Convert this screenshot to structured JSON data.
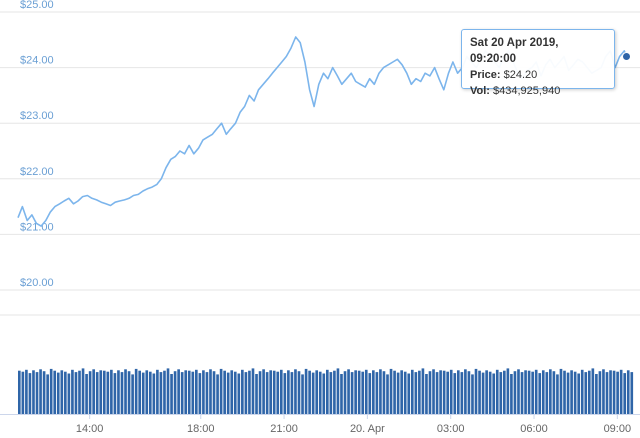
{
  "chart_data": {
    "type": "line",
    "ylim": [
      20,
      25
    ],
    "yticks": [
      "$20.00",
      "$21.00",
      "$22.00",
      "$23.00",
      "$24.00",
      "$25.00"
    ],
    "xtick_labels": [
      "14:00",
      "18:00",
      "21:00",
      "20. Apr",
      "03:00",
      "06:00",
      "09:00"
    ],
    "xtick_hours": [
      14,
      18,
      21,
      24,
      27,
      30,
      33
    ],
    "x_range_hours": [
      11.42,
      33.6
    ],
    "grid": true,
    "series": [
      {
        "x_hours": [
          11.42,
          11.58,
          11.75,
          11.92,
          12.08,
          12.25,
          12.42,
          12.58,
          12.75,
          12.92,
          13.08,
          13.25,
          13.42,
          13.58,
          13.75,
          13.92,
          14.08,
          14.25,
          14.42,
          14.58,
          14.75,
          14.92,
          15.08,
          15.25,
          15.42,
          15.58,
          15.75,
          15.92,
          16.08,
          16.25,
          16.42,
          16.58,
          16.75,
          16.92,
          17.08,
          17.25,
          17.42,
          17.58,
          17.75,
          17.92,
          18.08,
          18.25,
          18.42,
          18.58,
          18.75,
          18.92,
          19.08,
          19.25,
          19.42,
          19.58,
          19.75,
          19.92,
          20.08,
          20.25,
          20.42,
          20.58,
          20.75,
          20.92,
          21.08,
          21.25,
          21.42,
          21.58,
          21.75,
          21.92,
          22.08,
          22.25,
          22.42,
          22.58,
          22.75,
          22.92,
          23.08,
          23.25,
          23.42,
          23.58,
          23.75,
          23.92,
          24.08,
          24.25,
          24.42,
          24.58,
          24.75,
          24.92,
          25.08,
          25.25,
          25.42,
          25.58,
          25.75,
          25.92,
          26.08,
          26.25,
          26.42,
          26.58,
          26.75,
          26.92,
          27.08,
          27.25,
          27.42,
          27.58,
          27.75,
          27.92,
          28.08,
          28.25,
          28.42,
          28.58,
          28.75,
          28.92,
          29.08,
          29.25,
          29.42,
          29.58,
          29.75,
          29.92,
          30.08,
          30.25,
          30.42,
          30.58,
          30.75,
          30.92,
          31.08,
          31.25,
          31.42,
          31.58,
          31.75,
          31.92,
          32.08,
          32.25,
          32.42,
          32.58,
          32.75,
          32.92,
          33.08,
          33.25,
          33.33
        ],
        "values": [
          21.3,
          21.5,
          21.25,
          21.35,
          21.2,
          21.15,
          21.25,
          21.4,
          21.5,
          21.55,
          21.6,
          21.65,
          21.55,
          21.6,
          21.68,
          21.7,
          21.65,
          21.62,
          21.58,
          21.55,
          21.52,
          21.58,
          21.6,
          21.62,
          21.65,
          21.7,
          21.72,
          21.78,
          21.82,
          21.85,
          21.9,
          22.0,
          22.2,
          22.35,
          22.4,
          22.5,
          22.45,
          22.6,
          22.45,
          22.55,
          22.7,
          22.75,
          22.8,
          22.9,
          23.0,
          22.8,
          22.9,
          23.0,
          23.2,
          23.3,
          23.5,
          23.4,
          23.6,
          23.7,
          23.8,
          23.9,
          24.0,
          24.1,
          24.2,
          24.35,
          24.55,
          24.45,
          24.1,
          23.6,
          23.3,
          23.7,
          23.9,
          23.8,
          24.0,
          23.85,
          23.7,
          23.8,
          23.9,
          23.75,
          23.7,
          23.65,
          23.8,
          23.7,
          23.9,
          24.0,
          24.05,
          24.1,
          24.15,
          24.05,
          23.9,
          23.7,
          23.8,
          23.75,
          23.9,
          23.85,
          24.0,
          23.8,
          23.6,
          23.9,
          24.1,
          23.9,
          24.0,
          24.2,
          24.1,
          24.0,
          24.15,
          24.3,
          24.2,
          24.1,
          24.0,
          24.2,
          24.3,
          24.1,
          23.9,
          23.8,
          23.95,
          24.0,
          24.1,
          23.85,
          24.05,
          24.15,
          24.0,
          24.1,
          24.2,
          23.95,
          24.05,
          24.15,
          24.1,
          24.0,
          23.9,
          23.95,
          24.0,
          24.2,
          24.3,
          24.0,
          24.2,
          24.3,
          24.2
        ]
      }
    ],
    "volume": {
      "bars": 174,
      "base_level": 0.92,
      "pattern": [
        0.93,
        0.91,
        0.95,
        0.88,
        0.94,
        0.9,
        0.96,
        0.92,
        0.85,
        0.97,
        0.93,
        0.89,
        0.94,
        0.91,
        0.87,
        0.95,
        0.9,
        0.93,
        0.98,
        0.86,
        0.92,
        0.96,
        0.9,
        0.94
      ]
    },
    "tooltip": {
      "date": "Sat 20 Apr 2019, 09:20:00",
      "price_label": "Price:",
      "price_value": "$24.20",
      "vol_label": "Vol:",
      "vol_value": "$434,925,940",
      "point_hour": 33.33,
      "point_value": 24.2
    }
  },
  "colors": {
    "line": "#7cb5ec",
    "bar": "#2f65a8",
    "marker": "#2f65a8",
    "grid": "#e6e6e6"
  }
}
